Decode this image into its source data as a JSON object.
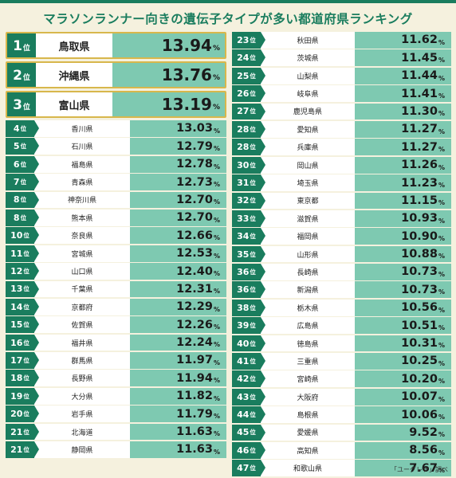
{
  "title": "マラソンランナー向きの遺伝子タイプが多い都道府県ランキング",
  "rank_suffix": "位",
  "unit": "%",
  "source": "「ユーグレナ」調べ",
  "colors": {
    "accent": "#1a7d5e",
    "bar": "#7ec9b1",
    "gold": "#d8b74c",
    "background": "#f5f1de"
  },
  "chart_data": {
    "type": "table",
    "title": "マラソンランナー向きの遺伝子タイプが多い都道府県ランキング",
    "columns": [
      "rank",
      "prefecture",
      "value"
    ],
    "unit": "%",
    "rows": [
      {
        "rank": "1",
        "prefecture": "鳥取県",
        "value": "13.94"
      },
      {
        "rank": "2",
        "prefecture": "沖縄県",
        "value": "13.76"
      },
      {
        "rank": "3",
        "prefecture": "富山県",
        "value": "13.19"
      },
      {
        "rank": "4",
        "prefecture": "香川県",
        "value": "13.03"
      },
      {
        "rank": "5",
        "prefecture": "石川県",
        "value": "12.79"
      },
      {
        "rank": "6",
        "prefecture": "福島県",
        "value": "12.78"
      },
      {
        "rank": "7",
        "prefecture": "青森県",
        "value": "12.73"
      },
      {
        "rank": "8",
        "prefecture": "神奈川県",
        "value": "12.70"
      },
      {
        "rank": "8",
        "prefecture": "熊本県",
        "value": "12.70"
      },
      {
        "rank": "10",
        "prefecture": "奈良県",
        "value": "12.66"
      },
      {
        "rank": "11",
        "prefecture": "宮城県",
        "value": "12.53"
      },
      {
        "rank": "12",
        "prefecture": "山口県",
        "value": "12.40"
      },
      {
        "rank": "13",
        "prefecture": "千葉県",
        "value": "12.31"
      },
      {
        "rank": "14",
        "prefecture": "京都府",
        "value": "12.29"
      },
      {
        "rank": "15",
        "prefecture": "佐賀県",
        "value": "12.26"
      },
      {
        "rank": "16",
        "prefecture": "福井県",
        "value": "12.24"
      },
      {
        "rank": "17",
        "prefecture": "群馬県",
        "value": "11.97"
      },
      {
        "rank": "18",
        "prefecture": "長野県",
        "value": "11.94"
      },
      {
        "rank": "19",
        "prefecture": "大分県",
        "value": "11.82"
      },
      {
        "rank": "20",
        "prefecture": "岩手県",
        "value": "11.79"
      },
      {
        "rank": "21",
        "prefecture": "北海道",
        "value": "11.63"
      },
      {
        "rank": "21",
        "prefecture": "静岡県",
        "value": "11.63"
      },
      {
        "rank": "23",
        "prefecture": "秋田県",
        "value": "11.62"
      },
      {
        "rank": "24",
        "prefecture": "茨城県",
        "value": "11.45"
      },
      {
        "rank": "25",
        "prefecture": "山梨県",
        "value": "11.44"
      },
      {
        "rank": "26",
        "prefecture": "岐阜県",
        "value": "11.41"
      },
      {
        "rank": "27",
        "prefecture": "鹿児島県",
        "value": "11.30"
      },
      {
        "rank": "28",
        "prefecture": "愛知県",
        "value": "11.27"
      },
      {
        "rank": "28",
        "prefecture": "兵庫県",
        "value": "11.27"
      },
      {
        "rank": "30",
        "prefecture": "岡山県",
        "value": "11.26"
      },
      {
        "rank": "31",
        "prefecture": "埼玉県",
        "value": "11.23"
      },
      {
        "rank": "32",
        "prefecture": "東京都",
        "value": "11.15"
      },
      {
        "rank": "33",
        "prefecture": "滋賀県",
        "value": "10.93"
      },
      {
        "rank": "34",
        "prefecture": "福岡県",
        "value": "10.90"
      },
      {
        "rank": "35",
        "prefecture": "山形県",
        "value": "10.88"
      },
      {
        "rank": "36",
        "prefecture": "長崎県",
        "value": "10.73"
      },
      {
        "rank": "36",
        "prefecture": "新潟県",
        "value": "10.73"
      },
      {
        "rank": "38",
        "prefecture": "栃木県",
        "value": "10.56"
      },
      {
        "rank": "39",
        "prefecture": "広島県",
        "value": "10.51"
      },
      {
        "rank": "40",
        "prefecture": "徳島県",
        "value": "10.31"
      },
      {
        "rank": "41",
        "prefecture": "三重県",
        "value": "10.25"
      },
      {
        "rank": "42",
        "prefecture": "宮崎県",
        "value": "10.20"
      },
      {
        "rank": "43",
        "prefecture": "大阪府",
        "value": "10.07"
      },
      {
        "rank": "44",
        "prefecture": "島根県",
        "value": "10.06"
      },
      {
        "rank": "45",
        "prefecture": "愛媛県",
        "value": "9.52"
      },
      {
        "rank": "46",
        "prefecture": "高知県",
        "value": "8.56"
      },
      {
        "rank": "47",
        "prefecture": "和歌山県",
        "value": "7.67"
      }
    ]
  }
}
